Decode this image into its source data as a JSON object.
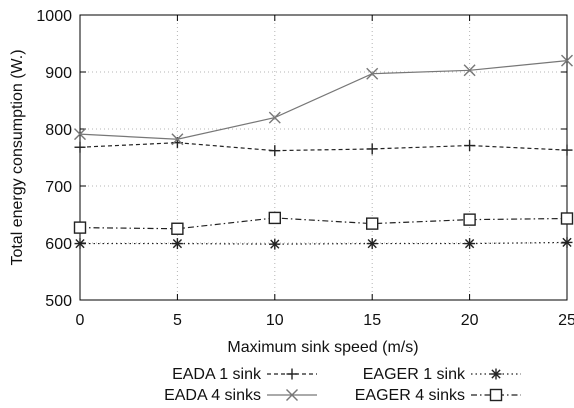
{
  "chart_data": {
    "type": "line",
    "xlabel": "Maximum sink speed (m/s)",
    "ylabel": "Total energy consumption (W.)",
    "x": [
      0,
      5,
      10,
      15,
      20,
      25
    ],
    "xlim": [
      0,
      25
    ],
    "ylim": [
      500,
      1000
    ],
    "xticks": [
      "0",
      "5",
      "10",
      "15",
      "20",
      "25"
    ],
    "yticks": [
      "500",
      "600",
      "700",
      "800",
      "900",
      "1000"
    ],
    "grid": true,
    "legend_position": "bottom",
    "series": [
      {
        "name": "EADA 1 sink",
        "values": [
          768,
          776,
          762,
          765,
          771,
          763
        ],
        "marker": "plus",
        "line_style": "dashed",
        "color": "#222222"
      },
      {
        "name": "EADA 4 sinks",
        "values": [
          791,
          782,
          820,
          897,
          903,
          920
        ],
        "marker": "x",
        "line_style": "solid",
        "color": "#777777"
      },
      {
        "name": "EAGER 1 sink",
        "values": [
          599,
          599,
          598,
          599,
          599,
          601
        ],
        "marker": "asterisk",
        "line_style": "dotted",
        "color": "#222222"
      },
      {
        "name": "EAGER 4 sinks",
        "values": [
          627,
          625,
          644,
          634,
          641,
          643
        ],
        "marker": "square",
        "line_style": "dashdot",
        "color": "#222222"
      }
    ]
  }
}
